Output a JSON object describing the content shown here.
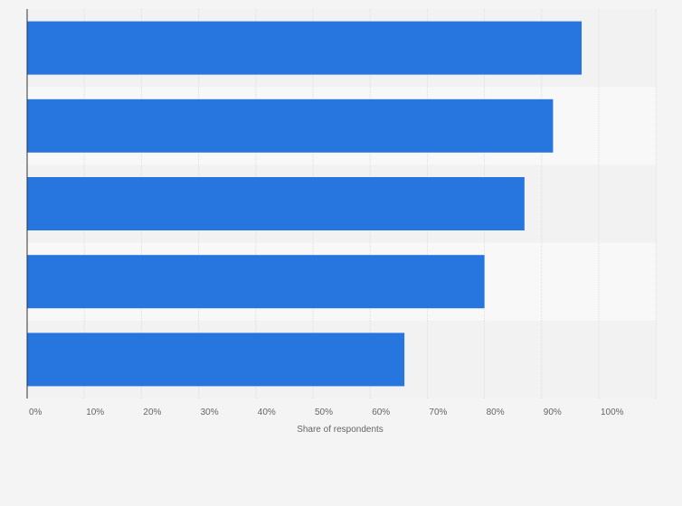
{
  "chart_data": {
    "type": "bar",
    "orientation": "horizontal",
    "categories": [
      "",
      "",
      "",
      "",
      ""
    ],
    "values": [
      97,
      92,
      87,
      80,
      66
    ],
    "xlabel": "Share of respondents",
    "ylabel": "",
    "xlim": [
      0,
      110
    ],
    "x_ticks": [
      0,
      10,
      20,
      30,
      40,
      50,
      60,
      70,
      80,
      90,
      100
    ],
    "x_tick_labels": [
      "0%",
      "10%",
      "20%",
      "30%",
      "40%",
      "50%",
      "60%",
      "70%",
      "80%",
      "90%",
      "100%"
    ],
    "grid": "vertical",
    "legend": "none",
    "colors": {
      "bar": "#2775de",
      "band_light": "#f8f8f8",
      "band_dark": "#f2f2f2",
      "grid": "#dddddd",
      "axis": "#333333",
      "text": "#666666",
      "background": "#f4f4f4"
    }
  }
}
